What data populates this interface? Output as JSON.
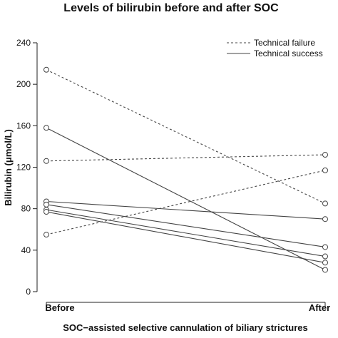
{
  "chart_data": {
    "type": "line",
    "title": "Levels of bilirubin before and after SOC",
    "xlabel": "SOC−assisted selective cannulation of biliary strictures",
    "ylabel": "Bilirubin (μmol/L)",
    "categories": [
      "Before",
      "After"
    ],
    "ylim": [
      0,
      240
    ],
    "yticks": [
      0,
      40,
      80,
      120,
      160,
      200,
      240
    ],
    "grid": false,
    "legend_position": "top-right",
    "legend": [
      {
        "label": "Technical failure",
        "style": "dashed"
      },
      {
        "label": "Technical success",
        "style": "solid"
      }
    ],
    "series": [
      {
        "group": "Technical failure",
        "values": [
          214,
          85
        ]
      },
      {
        "group": "Technical failure",
        "values": [
          126,
          132
        ]
      },
      {
        "group": "Technical failure",
        "values": [
          55,
          117
        ]
      },
      {
        "group": "Technical success",
        "values": [
          158,
          21
        ]
      },
      {
        "group": "Technical success",
        "values": [
          87,
          70
        ]
      },
      {
        "group": "Technical success",
        "values": [
          84,
          43
        ]
      },
      {
        "group": "Technical success",
        "values": [
          79,
          34
        ]
      },
      {
        "group": "Technical success",
        "values": [
          77,
          28
        ]
      }
    ],
    "colors": {
      "lines": "#444444",
      "axes": "#222222"
    }
  }
}
